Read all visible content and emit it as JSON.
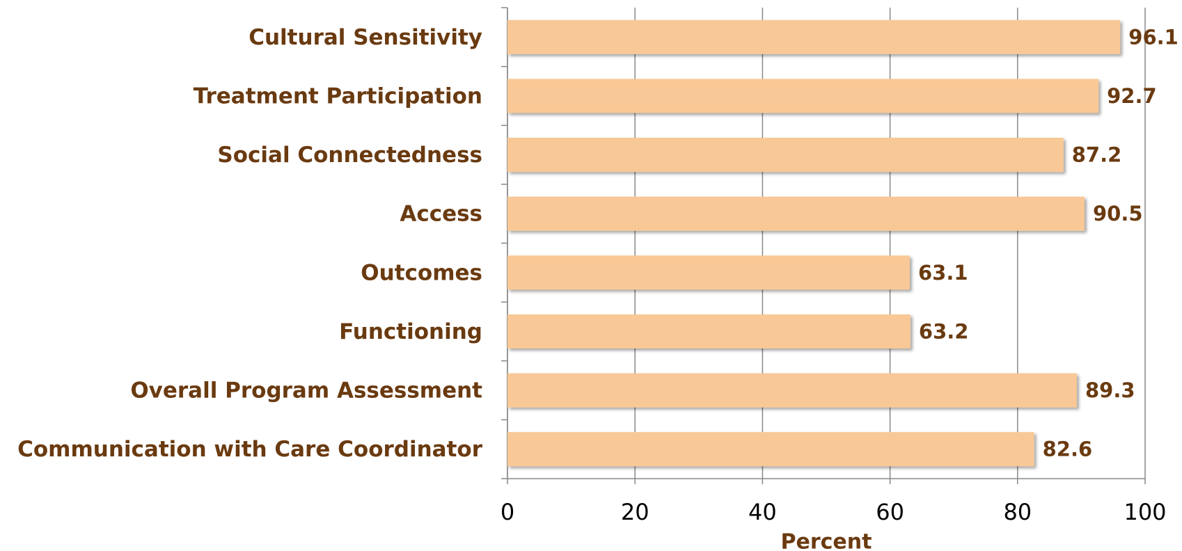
{
  "chart_data": {
    "type": "hbar",
    "categories": [
      "Cultural Sensitivity",
      "Treatment Participation",
      "Social Connectedness",
      "Access",
      "Outcomes",
      "Functioning",
      "Overall Program Assessment",
      "Communication with Care Coordinator"
    ],
    "values": [
      96.1,
      92.7,
      87.2,
      90.5,
      63.1,
      63.2,
      89.3,
      82.6
    ],
    "color": "#f8c896",
    "xlabel": "Percent",
    "xlim": [
      0,
      100
    ],
    "xticks": [
      0,
      20,
      40,
      60,
      80,
      100
    ],
    "grid": true
  }
}
